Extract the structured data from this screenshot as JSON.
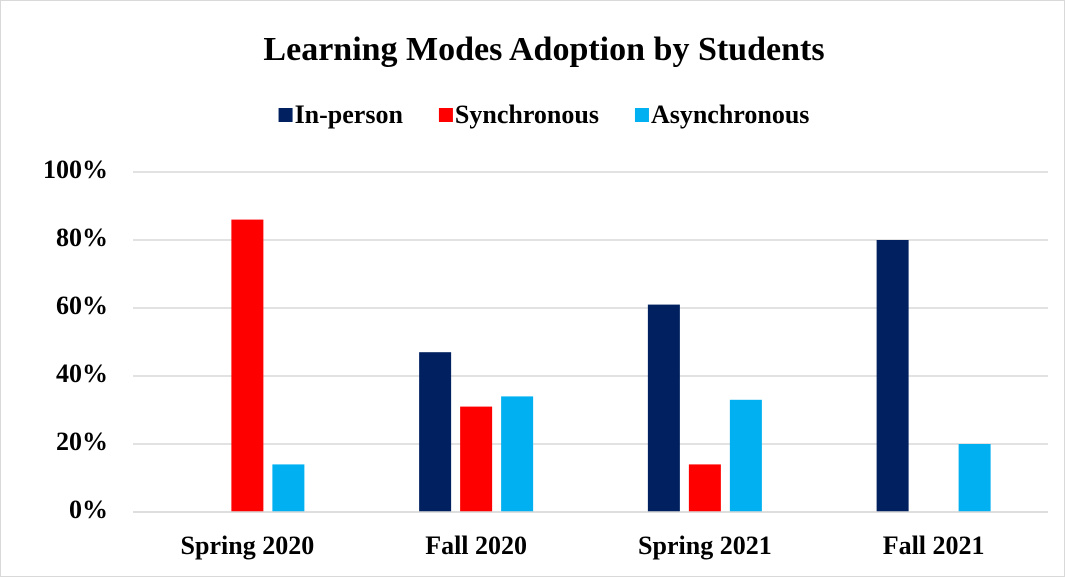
{
  "chart_data": {
    "type": "bar",
    "title": "Learning Modes Adoption by Students",
    "categories": [
      "Spring 2020",
      "Fall 2020",
      "Spring 2021",
      "Fall 2021"
    ],
    "series": [
      {
        "name": "In-person",
        "color": "#002060",
        "values": [
          0,
          47,
          61,
          80
        ]
      },
      {
        "name": "Synchronous",
        "color": "#ff0000",
        "values": [
          86,
          31,
          14,
          0
        ]
      },
      {
        "name": "Asynchronous",
        "color": "#00b0f0",
        "values": [
          14,
          34,
          33,
          20
        ]
      }
    ],
    "ylim": [
      0,
      100
    ],
    "yticks": [
      {
        "value": 0,
        "label": "0%"
      },
      {
        "value": 20,
        "label": "20%"
      },
      {
        "value": 40,
        "label": "40%"
      },
      {
        "value": 60,
        "label": "60%"
      },
      {
        "value": 80,
        "label": "80%"
      },
      {
        "value": 100,
        "label": "100%"
      }
    ],
    "grid": true,
    "legend": "top"
  }
}
